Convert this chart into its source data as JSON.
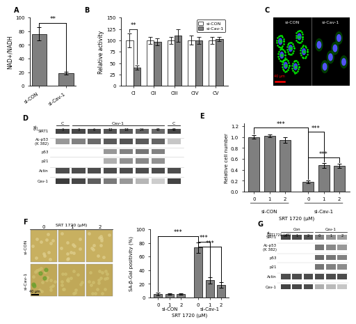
{
  "panel_A": {
    "categories": [
      "si-CON",
      "si-Cav-1"
    ],
    "values": [
      76,
      19
    ],
    "errors": [
      10,
      2
    ],
    "ylabel": "NAD+/NADH",
    "ylim": [
      0,
      100
    ],
    "bar_color": "#7f7f7f",
    "sig_text": "**"
  },
  "panel_B": {
    "groups": [
      "CI",
      "CII",
      "CIII",
      "CIV",
      "CV"
    ],
    "si_CON": [
      100,
      100,
      100,
      100,
      100
    ],
    "si_Cav1": [
      40,
      97,
      110,
      100,
      103
    ],
    "errors_CON": [
      15,
      8,
      8,
      10,
      8
    ],
    "errors_Cav1": [
      5,
      8,
      14,
      8,
      5
    ],
    "ylabel": "Relative activity",
    "ylim": [
      0,
      150
    ],
    "color_CON": "#ffffff",
    "color_Cav1": "#7f7f7f",
    "sig_CI": "**"
  },
  "panel_E": {
    "xticklabels": [
      "0",
      "1",
      "2",
      "0",
      "1",
      "2"
    ],
    "values": [
      1.0,
      1.02,
      0.95,
      0.18,
      0.48,
      0.47
    ],
    "errors": [
      0.03,
      0.03,
      0.05,
      0.02,
      0.04,
      0.04
    ],
    "ylabel": "Relative cell number",
    "ylim": [
      0,
      1.25
    ],
    "bar_color": "#7f7f7f",
    "xlabel": "SRT 1720 (μM)"
  },
  "panel_F_bar": {
    "xticklabels": [
      "0",
      "1",
      "2",
      "0",
      "1",
      "2"
    ],
    "values": [
      5,
      5,
      5,
      73,
      25,
      18
    ],
    "errors": [
      2,
      1,
      1,
      8,
      5,
      4
    ],
    "ylabel": "SA-β-Gal positivity (%)",
    "ylim": [
      0,
      100
    ],
    "bar_color": "#7f7f7f",
    "xlabel": "SRT 1720 (μM)"
  },
  "bg_color": "#ffffff",
  "gray_bar": "#7f7f7f"
}
